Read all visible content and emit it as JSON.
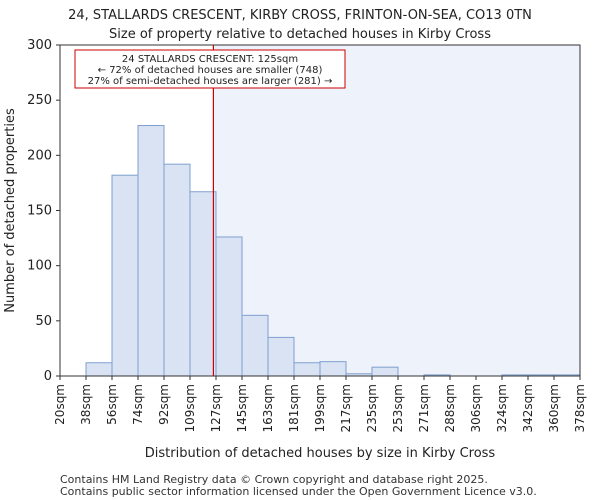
{
  "chart_data": {
    "type": "bar",
    "title": "24, STALLARDS CRESCENT, KIRBY CROSS, FRINTON-ON-SEA, CO13 0TN",
    "subtitle": "Size of property relative to detached houses in Kirby Cross",
    "xlabel": "Distribution of detached houses by size in Kirby Cross",
    "ylabel": "Number of detached properties",
    "ylim": [
      0,
      300
    ],
    "yticks": [
      0,
      50,
      100,
      150,
      200,
      250,
      300
    ],
    "bin_edges": [
      "20sqm",
      "38sqm",
      "56sqm",
      "74sqm",
      "92sqm",
      "109sqm",
      "127sqm",
      "145sqm",
      "163sqm",
      "181sqm",
      "199sqm",
      "217sqm",
      "235sqm",
      "253sqm",
      "271sqm",
      "288sqm",
      "306sqm",
      "324sqm",
      "342sqm",
      "360sqm",
      "378sqm"
    ],
    "values": [
      0,
      12,
      182,
      227,
      192,
      167,
      126,
      55,
      35,
      12,
      13,
      2,
      8,
      0,
      1,
      0,
      0,
      1,
      1,
      1
    ],
    "marker_value_sqm": 125,
    "marker_position_bins": 5.9,
    "annotation_lines": [
      "24 STALLARDS CRESCENT: 125sqm",
      "← 72% of detached houses are smaller (748)",
      "27% of semi-detached houses are larger (281) →"
    ],
    "colors": {
      "bar_fill": "#dae3f3",
      "bar_stroke": "#7f9fcf",
      "highlight_bg": "#eef2fb",
      "marker": "#cc0000"
    }
  },
  "footer": {
    "line1": "Contains HM Land Registry data © Crown copyright and database right 2025.",
    "line2": "Contains public sector information licensed under the Open Government Licence v3.0."
  }
}
